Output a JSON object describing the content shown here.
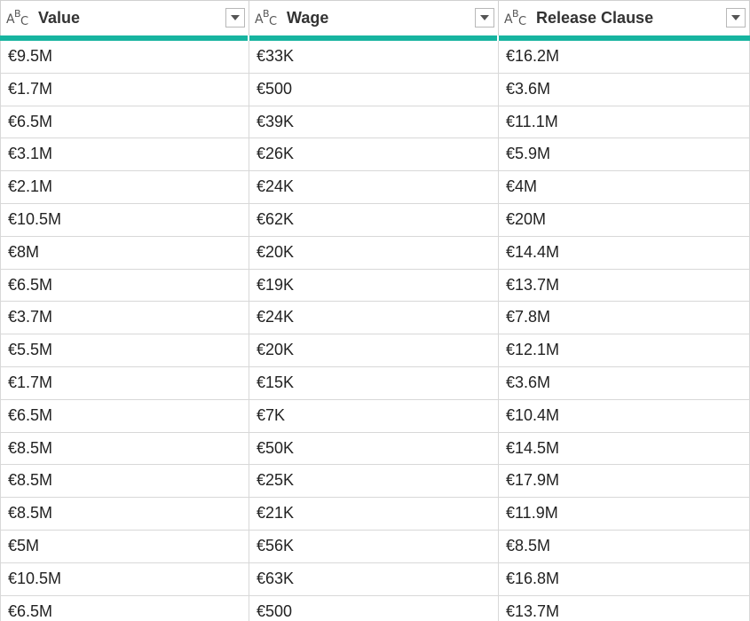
{
  "columns": [
    {
      "type_icon": "text-type-icon",
      "title": "Value"
    },
    {
      "type_icon": "text-type-icon",
      "title": "Wage"
    },
    {
      "type_icon": "text-type-icon",
      "title": "Release Clause"
    }
  ],
  "rows": [
    [
      "€9.5M",
      "€33K",
      "€16.2M"
    ],
    [
      "€1.7M",
      "€500",
      "€3.6M"
    ],
    [
      "€6.5M",
      "€39K",
      "€11.1M"
    ],
    [
      "€3.1M",
      "€26K",
      "€5.9M"
    ],
    [
      "€2.1M",
      "€24K",
      "€4M"
    ],
    [
      "€10.5M",
      "€62K",
      "€20M"
    ],
    [
      "€8M",
      "€20K",
      "€14.4M"
    ],
    [
      "€6.5M",
      "€19K",
      "€13.7M"
    ],
    [
      "€3.7M",
      "€24K",
      "€7.8M"
    ],
    [
      "€5.5M",
      "€20K",
      "€12.1M"
    ],
    [
      "€1.7M",
      "€15K",
      "€3.6M"
    ],
    [
      "€6.5M",
      "€7K",
      "€10.4M"
    ],
    [
      "€8.5M",
      "€50K",
      "€14.5M"
    ],
    [
      "€8.5M",
      "€25K",
      "€17.9M"
    ],
    [
      "€8.5M",
      "€21K",
      "€11.9M"
    ],
    [
      "€5M",
      "€56K",
      "€8.5M"
    ],
    [
      "€10.5M",
      "€63K",
      "€16.8M"
    ],
    [
      "€6.5M",
      "€500",
      "€13.7M"
    ]
  ],
  "colors": {
    "quality_bar": "#17b4a0",
    "grid_line": "#d8d8d8"
  }
}
